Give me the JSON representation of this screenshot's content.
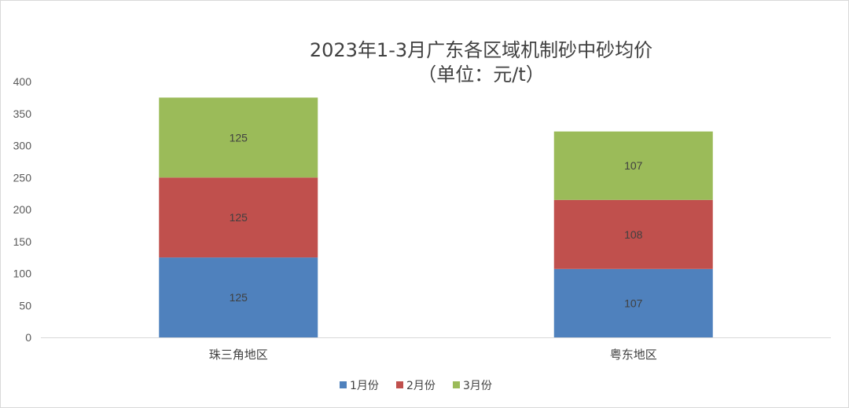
{
  "chart_data": {
    "type": "bar",
    "stacked": true,
    "title": "2023年1-3月广东各区域机制砂中砂均价",
    "subtitle": "（单位：元/t）",
    "categories": [
      "珠三角地区",
      "粤东地区"
    ],
    "series": [
      {
        "name": "1月份",
        "color": "#4f81bd",
        "values": [
          125,
          107
        ]
      },
      {
        "name": "2月份",
        "color": "#c0504d",
        "values": [
          125,
          108
        ]
      },
      {
        "name": "3月份",
        "color": "#9bbb59",
        "values": [
          125,
          107
        ]
      }
    ],
    "ylim": [
      0,
      400
    ],
    "yticks": [
      0,
      50,
      100,
      150,
      200,
      250,
      300,
      350,
      400
    ],
    "grid": false,
    "legend_position": "bottom"
  }
}
